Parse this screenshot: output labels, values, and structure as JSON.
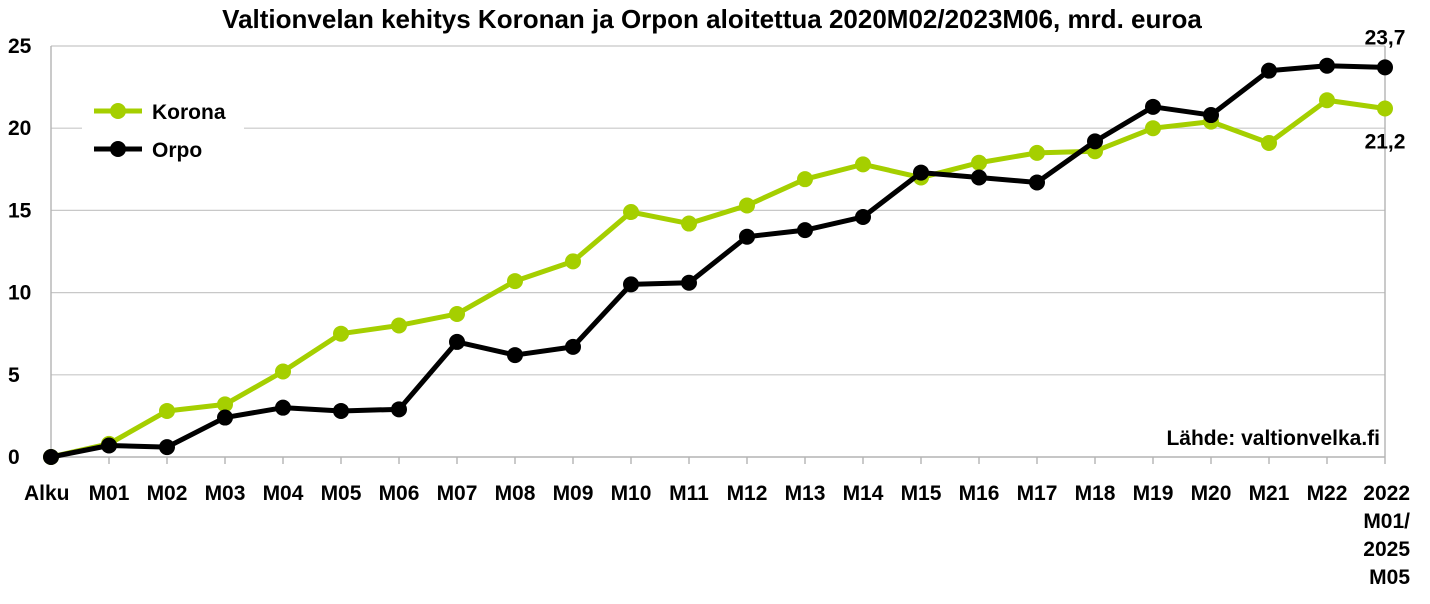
{
  "chart_data": {
    "type": "line",
    "title": "Valtionvelan kehitys Koronan ja Orpon aloitettua 2020M02/2023M06, mrd. euroa",
    "source_note": "Lähde: valtionvelka.fi",
    "categories": [
      "Alku",
      "M01",
      "M02",
      "M03",
      "M04",
      "M05",
      "M06",
      "M07",
      "M08",
      "M09",
      "M10",
      "M11",
      "M12",
      "M13",
      "M14",
      "M15",
      "M16",
      "M17",
      "M18",
      "M19",
      "M20",
      "M21",
      "M22",
      "2022 M01/ 2025 M05"
    ],
    "category_label_lines": [
      [
        "Alku"
      ],
      [
        "M01"
      ],
      [
        "M02"
      ],
      [
        "M03"
      ],
      [
        "M04"
      ],
      [
        "M05"
      ],
      [
        "M06"
      ],
      [
        "M07"
      ],
      [
        "M08"
      ],
      [
        "M09"
      ],
      [
        "M10"
      ],
      [
        "M11"
      ],
      [
        "M12"
      ],
      [
        "M13"
      ],
      [
        "M14"
      ],
      [
        "M15"
      ],
      [
        "M16"
      ],
      [
        "M17"
      ],
      [
        "M18"
      ],
      [
        "M19"
      ],
      [
        "M20"
      ],
      [
        "M21"
      ],
      [
        "M22"
      ],
      [
        "2022",
        "M01/",
        "2025",
        "M05"
      ]
    ],
    "ylim": [
      0,
      25
    ],
    "yticks": [
      0,
      5,
      10,
      15,
      20,
      25
    ],
    "grid": true,
    "legend_position": "top-left",
    "series": [
      {
        "name": "Korona",
        "color": "#a5cf00",
        "values": [
          0,
          0.8,
          2.8,
          3.2,
          5.2,
          7.5,
          8.0,
          8.7,
          10.7,
          11.9,
          14.9,
          14.2,
          15.3,
          16.9,
          17.8,
          17.0,
          17.9,
          18.5,
          18.6,
          20.0,
          20.4,
          19.1,
          21.7,
          21.2
        ]
      },
      {
        "name": "Orpo",
        "color": "#000000",
        "values": [
          0,
          0.7,
          0.6,
          2.4,
          3.0,
          2.8,
          2.9,
          7.0,
          6.2,
          6.7,
          10.5,
          10.6,
          13.4,
          13.8,
          14.6,
          17.3,
          17.0,
          16.7,
          19.2,
          21.3,
          20.8,
          23.5,
          23.8,
          23.7
        ]
      }
    ],
    "annotations": [
      {
        "series": "Orpo",
        "index": 23,
        "text": "23,7"
      },
      {
        "series": "Korona",
        "index": 23,
        "text": "21,2"
      }
    ]
  }
}
